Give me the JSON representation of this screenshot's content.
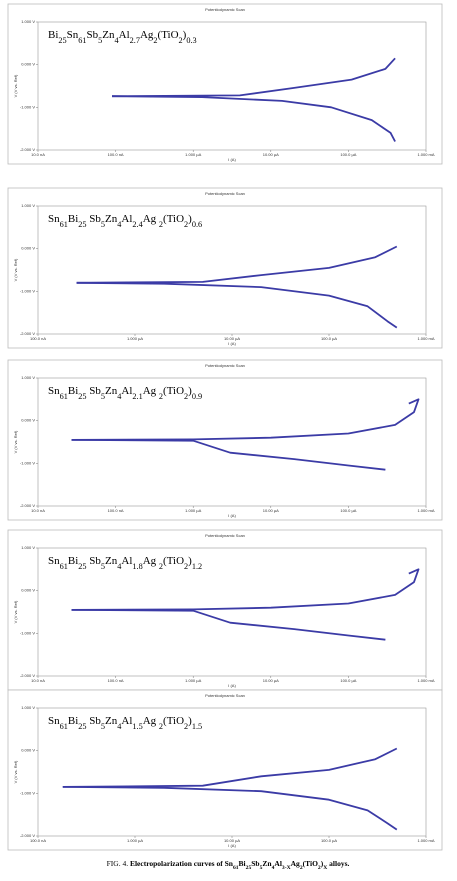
{
  "chart_data": [
    {
      "type": "line",
      "title": "Potentiodynamic Scan",
      "annotation": "Bi25Sn61Sb5Zn4Al2.7Ag2(TiO2)0.3",
      "xlabel": "I (A)",
      "ylabel": "V (V vs. Ref)",
      "xscale": "log",
      "xlim": [
        1e-08,
        0.001
      ],
      "xticks": [
        {
          "value": 1e-08,
          "label": "10.0 nA"
        },
        {
          "value": 1e-07,
          "label": "100.0 nA"
        },
        {
          "value": 1e-06,
          "label": "1.000 µA"
        },
        {
          "value": 1e-05,
          "label": "10.00 µA"
        },
        {
          "value": 0.0001,
          "label": "100.0 µA"
        },
        {
          "value": 0.001,
          "label": "1.000 mA"
        }
      ],
      "ylim": [
        -2,
        1
      ],
      "yticks": [
        {
          "value": 1,
          "label": "1.000 V"
        },
        {
          "value": 0,
          "label": "0.000 V"
        },
        {
          "value": -1,
          "label": "-1.000 V"
        },
        {
          "value": -2,
          "label": "-2.000 V"
        }
      ],
      "series": [
        {
          "color": "#3b3ba6",
          "x": [
            9e-08,
            4e-06,
            1.9e-05,
            0.00011,
            0.0003,
            0.0004
          ],
          "values": [
            -0.74,
            -0.72,
            -0.55,
            -0.35,
            -0.1,
            0.15
          ]
        },
        {
          "color": "#3b3ba6",
          "x": [
            9e-08,
            1.3e-06,
            1.4e-05,
            6e-05,
            0.0002,
            0.00035,
            0.0004
          ],
          "values": [
            -0.74,
            -0.76,
            -0.85,
            -1.0,
            -1.3,
            -1.6,
            -1.8
          ]
        }
      ]
    },
    {
      "type": "line",
      "title": "Potentiodynamic Scan",
      "annotation": "Sn61Bi25 Sb5Zn4Al2.4Ag 2(TiO2)0.6",
      "xlabel": "I (A)",
      "ylabel": "V (V vs. Ref)",
      "xscale": "log",
      "xlim": [
        1e-07,
        0.001
      ],
      "xticks": [
        {
          "value": 1e-07,
          "label": "100.0 nA"
        },
        {
          "value": 1e-06,
          "label": "1.000 µA"
        },
        {
          "value": 1e-05,
          "label": "10.00 µA"
        },
        {
          "value": 0.0001,
          "label": "100.0 µA"
        },
        {
          "value": 0.001,
          "label": "1.000 mA"
        }
      ],
      "ylim": [
        -2,
        1
      ],
      "yticks": [
        {
          "value": 1,
          "label": "1.000 V"
        },
        {
          "value": 0,
          "label": "0.000 V"
        },
        {
          "value": -1,
          "label": "-1.000 V"
        },
        {
          "value": -2,
          "label": "-2.000 V"
        }
      ],
      "series": [
        {
          "color": "#3b3ba6",
          "x": [
            2.5e-07,
            5e-06,
            2e-05,
            0.0001,
            0.0003,
            0.0005
          ],
          "values": [
            -0.8,
            -0.78,
            -0.62,
            -0.45,
            -0.2,
            0.05
          ]
        },
        {
          "color": "#3b3ba6",
          "x": [
            2.5e-07,
            2e-06,
            2e-05,
            0.0001,
            0.00025,
            0.0004,
            0.0005
          ],
          "values": [
            -0.8,
            -0.82,
            -0.9,
            -1.1,
            -1.35,
            -1.7,
            -1.85
          ]
        }
      ]
    },
    {
      "type": "line",
      "title": "Potentiodynamic Scan",
      "annotation": "Sn61Bi25 Sb5Zn4Al2.1Ag 2(TiO2)0.9",
      "xlabel": "I (A)",
      "ylabel": "V (V vs. Ref)",
      "xscale": "log",
      "xlim": [
        1e-08,
        0.001
      ],
      "xticks": [
        {
          "value": 1e-08,
          "label": "10.0 nA"
        },
        {
          "value": 1e-07,
          "label": "100.0 nA"
        },
        {
          "value": 1e-06,
          "label": "1.000 µA"
        },
        {
          "value": 1e-05,
          "label": "10.00 µA"
        },
        {
          "value": 0.0001,
          "label": "100.0 µA"
        },
        {
          "value": 0.001,
          "label": "1.000 mA"
        }
      ],
      "ylim": [
        -2,
        1
      ],
      "yticks": [
        {
          "value": 1,
          "label": "1.000 V"
        },
        {
          "value": 0,
          "label": "0.000 V"
        },
        {
          "value": -1,
          "label": "-1.000 V"
        },
        {
          "value": -2,
          "label": "-2.000 V"
        }
      ],
      "series": [
        {
          "color": "#3b3ba6",
          "x": [
            2.7e-08,
            1e-06,
            1e-05,
            0.0001,
            0.0004,
            0.0007,
            0.0008,
            0.0006
          ],
          "values": [
            -0.45,
            -0.44,
            -0.4,
            -0.3,
            -0.1,
            0.2,
            0.5,
            0.4
          ]
        },
        {
          "color": "#3b3ba6",
          "x": [
            2.7e-08,
            1e-06,
            3e-06,
            2e-05,
            0.0001,
            0.0003
          ],
          "values": [
            -0.45,
            -0.47,
            -0.75,
            -0.9,
            -1.05,
            -1.15
          ]
        }
      ]
    },
    {
      "type": "line",
      "title": "Potentiodynamic Scan",
      "annotation": "Sn61Bi25 Sb5Zn4Al1.8Ag 2(TiO2)1.2",
      "xlabel": "I (A)",
      "ylabel": "V (V vs. Ref)",
      "xscale": "log",
      "xlim": [
        1e-08,
        0.001
      ],
      "xticks": [
        {
          "value": 1e-08,
          "label": "10.0 nA"
        },
        {
          "value": 1e-07,
          "label": "100.0 nA"
        },
        {
          "value": 1e-06,
          "label": "1.000 µA"
        },
        {
          "value": 1e-05,
          "label": "10.00 µA"
        },
        {
          "value": 0.0001,
          "label": "100.0 µA"
        },
        {
          "value": 0.001,
          "label": "1.000 mA"
        }
      ],
      "ylim": [
        -2,
        1
      ],
      "yticks": [
        {
          "value": 1,
          "label": "1.000 V"
        },
        {
          "value": 0,
          "label": "0.000 V"
        },
        {
          "value": -1,
          "label": "-1.000 V"
        },
        {
          "value": -2,
          "label": "-2.000 V"
        }
      ],
      "series": [
        {
          "color": "#3b3ba6",
          "x": [
            2.7e-08,
            1e-06,
            1e-05,
            0.0001,
            0.0004,
            0.0007,
            0.0008,
            0.0006
          ],
          "values": [
            -0.45,
            -0.44,
            -0.4,
            -0.3,
            -0.1,
            0.2,
            0.5,
            0.4
          ]
        },
        {
          "color": "#3b3ba6",
          "x": [
            2.7e-08,
            1e-06,
            3e-06,
            2e-05,
            0.0001,
            0.0003
          ],
          "values": [
            -0.45,
            -0.47,
            -0.75,
            -0.9,
            -1.05,
            -1.15
          ]
        }
      ]
    },
    {
      "type": "line",
      "title": "Potentiodynamic Scan",
      "annotation": "Sn61Bi25 Sb5Zn4Al1.5Ag 2(TiO2)1.5",
      "xlabel": "I (A)",
      "ylabel": "V (V vs. Ref)",
      "xscale": "log",
      "xlim": [
        1e-07,
        0.001
      ],
      "xticks": [
        {
          "value": 1e-07,
          "label": "100.0 nA"
        },
        {
          "value": 1e-06,
          "label": "1.000 µA"
        },
        {
          "value": 1e-05,
          "label": "10.00 µA"
        },
        {
          "value": 0.0001,
          "label": "100.0 µA"
        },
        {
          "value": 0.001,
          "label": "1.000 mA"
        }
      ],
      "ylim": [
        -2,
        1
      ],
      "yticks": [
        {
          "value": 1,
          "label": "1.000 V"
        },
        {
          "value": 0,
          "label": "0.000 V"
        },
        {
          "value": -1,
          "label": "-1.000 V"
        },
        {
          "value": -2,
          "label": "-2.000 V"
        }
      ],
      "series": [
        {
          "color": "#3b3ba6",
          "x": [
            1.8e-07,
            5e-06,
            2e-05,
            0.0001,
            0.0003,
            0.0005
          ],
          "values": [
            -0.85,
            -0.82,
            -0.6,
            -0.45,
            -0.2,
            0.05
          ]
        },
        {
          "color": "#3b3ba6",
          "x": [
            1.8e-07,
            2e-06,
            2e-05,
            0.0001,
            0.00025,
            0.0004,
            0.0005
          ],
          "values": [
            -0.85,
            -0.87,
            -0.95,
            -1.15,
            -1.4,
            -1.7,
            -1.85
          ]
        }
      ]
    }
  ],
  "caption": {
    "label": "FIG. 4.",
    "text": "Electropolarization curves of Sn61Bi25Sb5Zn4Al3-XAg2(TiO2)X alloys."
  }
}
